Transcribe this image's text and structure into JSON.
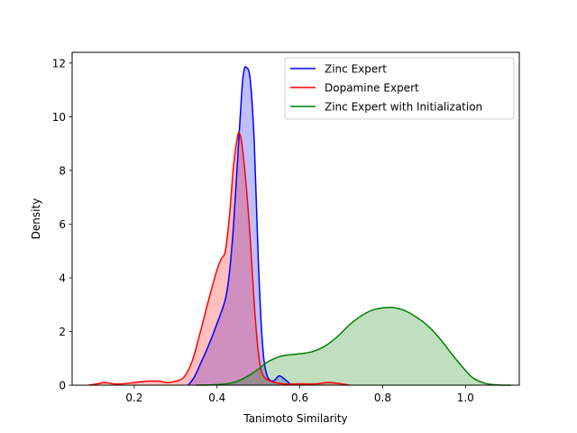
{
  "chart_data": {
    "type": "area",
    "title": "",
    "xlabel": "Tanimoto Similarity",
    "ylabel": "Density",
    "xlim": [
      0.05,
      1.13
    ],
    "ylim": [
      0,
      12.4
    ],
    "xticks": [
      0.2,
      0.4,
      0.6,
      0.8,
      1.0
    ],
    "xtick_labels": [
      "0.2",
      "0.4",
      "0.6",
      "0.8",
      "1.0"
    ],
    "yticks": [
      0,
      2,
      4,
      6,
      8,
      10,
      12
    ],
    "ytick_labels": [
      "0",
      "2",
      "4",
      "6",
      "8",
      "10",
      "12"
    ],
    "grid": false,
    "legend_position": "top-right",
    "series": [
      {
        "name": "Zinc Expert",
        "color": "#0000ff",
        "fill_color": "#0000ff",
        "points": [
          [
            0.33,
            0.0
          ],
          [
            0.345,
            0.3
          ],
          [
            0.36,
            0.8
          ],
          [
            0.38,
            1.5
          ],
          [
            0.4,
            2.3
          ],
          [
            0.42,
            3.2
          ],
          [
            0.43,
            4.2
          ],
          [
            0.44,
            6.0
          ],
          [
            0.45,
            8.5
          ],
          [
            0.46,
            11.0
          ],
          [
            0.465,
            11.7
          ],
          [
            0.47,
            11.85
          ],
          [
            0.48,
            11.4
          ],
          [
            0.49,
            9.0
          ],
          [
            0.5,
            4.5
          ],
          [
            0.51,
            1.5
          ],
          [
            0.52,
            0.4
          ],
          [
            0.535,
            0.15
          ],
          [
            0.55,
            0.35
          ],
          [
            0.565,
            0.2
          ],
          [
            0.58,
            0.0
          ]
        ]
      },
      {
        "name": "Dopamine Expert",
        "color": "#ff0000",
        "fill_color": "#ff0000",
        "points": [
          [
            0.09,
            0.0
          ],
          [
            0.11,
            0.05
          ],
          [
            0.13,
            0.1
          ],
          [
            0.15,
            0.05
          ],
          [
            0.17,
            0.05
          ],
          [
            0.2,
            0.1
          ],
          [
            0.23,
            0.15
          ],
          [
            0.26,
            0.15
          ],
          [
            0.28,
            0.1
          ],
          [
            0.3,
            0.15
          ],
          [
            0.32,
            0.3
          ],
          [
            0.34,
            0.9
          ],
          [
            0.36,
            2.0
          ],
          [
            0.38,
            3.2
          ],
          [
            0.4,
            4.3
          ],
          [
            0.41,
            4.7
          ],
          [
            0.42,
            5.0
          ],
          [
            0.43,
            6.3
          ],
          [
            0.44,
            8.2
          ],
          [
            0.45,
            9.3
          ],
          [
            0.455,
            9.35
          ],
          [
            0.46,
            9.0
          ],
          [
            0.47,
            7.5
          ],
          [
            0.48,
            5.5
          ],
          [
            0.49,
            3.0
          ],
          [
            0.5,
            1.2
          ],
          [
            0.51,
            0.4
          ],
          [
            0.53,
            0.15
          ],
          [
            0.56,
            0.05
          ],
          [
            0.6,
            0.05
          ],
          [
            0.64,
            0.05
          ],
          [
            0.67,
            0.1
          ],
          [
            0.7,
            0.05
          ],
          [
            0.72,
            0.0
          ]
        ]
      },
      {
        "name": "Zinc Expert with Initialization",
        "color": "#008000",
        "fill_color": "#008000",
        "points": [
          [
            0.35,
            0.0
          ],
          [
            0.4,
            0.02
          ],
          [
            0.44,
            0.1
          ],
          [
            0.47,
            0.3
          ],
          [
            0.5,
            0.6
          ],
          [
            0.52,
            0.85
          ],
          [
            0.54,
            1.0
          ],
          [
            0.56,
            1.1
          ],
          [
            0.6,
            1.17
          ],
          [
            0.63,
            1.25
          ],
          [
            0.66,
            1.45
          ],
          [
            0.69,
            1.8
          ],
          [
            0.72,
            2.25
          ],
          [
            0.75,
            2.6
          ],
          [
            0.78,
            2.82
          ],
          [
            0.82,
            2.9
          ],
          [
            0.85,
            2.8
          ],
          [
            0.88,
            2.55
          ],
          [
            0.91,
            2.2
          ],
          [
            0.94,
            1.7
          ],
          [
            0.97,
            1.1
          ],
          [
            1.0,
            0.55
          ],
          [
            1.02,
            0.25
          ],
          [
            1.05,
            0.06
          ],
          [
            1.08,
            0.01
          ],
          [
            1.11,
            0.0
          ]
        ]
      }
    ]
  }
}
